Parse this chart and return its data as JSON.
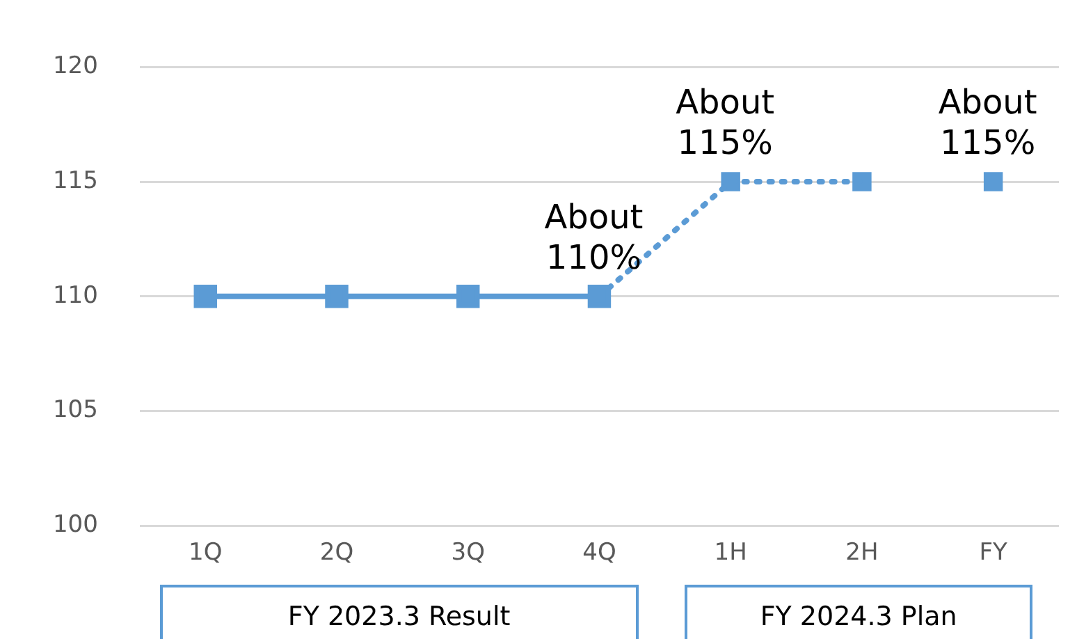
{
  "chart_data": {
    "type": "line",
    "categories": [
      "1Q",
      "2Q",
      "3Q",
      "4Q",
      "1H",
      "2H",
      "FY"
    ],
    "series": [
      {
        "type": "line",
        "color": "#5b9bd5",
        "line_style": "solid",
        "marker": "square",
        "values": [
          110,
          110,
          110,
          110,
          null,
          null,
          null
        ]
      },
      {
        "type": "line",
        "color": "#5b9bd5",
        "line_style": "dotted",
        "marker": "none",
        "values": [
          null,
          null,
          null,
          110,
          115,
          115,
          null
        ]
      },
      {
        "type": "scatter",
        "color": "#5b9bd5",
        "marker": "square",
        "values": [
          null,
          null,
          null,
          null,
          115,
          115,
          115
        ]
      }
    ],
    "ylim": [
      100,
      120
    ],
    "yticks": [
      100,
      105,
      110,
      115,
      120
    ],
    "grid": "y",
    "legend": false,
    "annotations": [
      {
        "text": "About\n110%",
        "x": "4Q",
        "y": 110
      },
      {
        "text": "About\n115%",
        "x": "1H",
        "y": 115
      },
      {
        "text": "About\n115%",
        "x": "FY",
        "y": 115
      },
      "FY 2023.3 Result",
      "FY 2024.3 Plan"
    ]
  }
}
